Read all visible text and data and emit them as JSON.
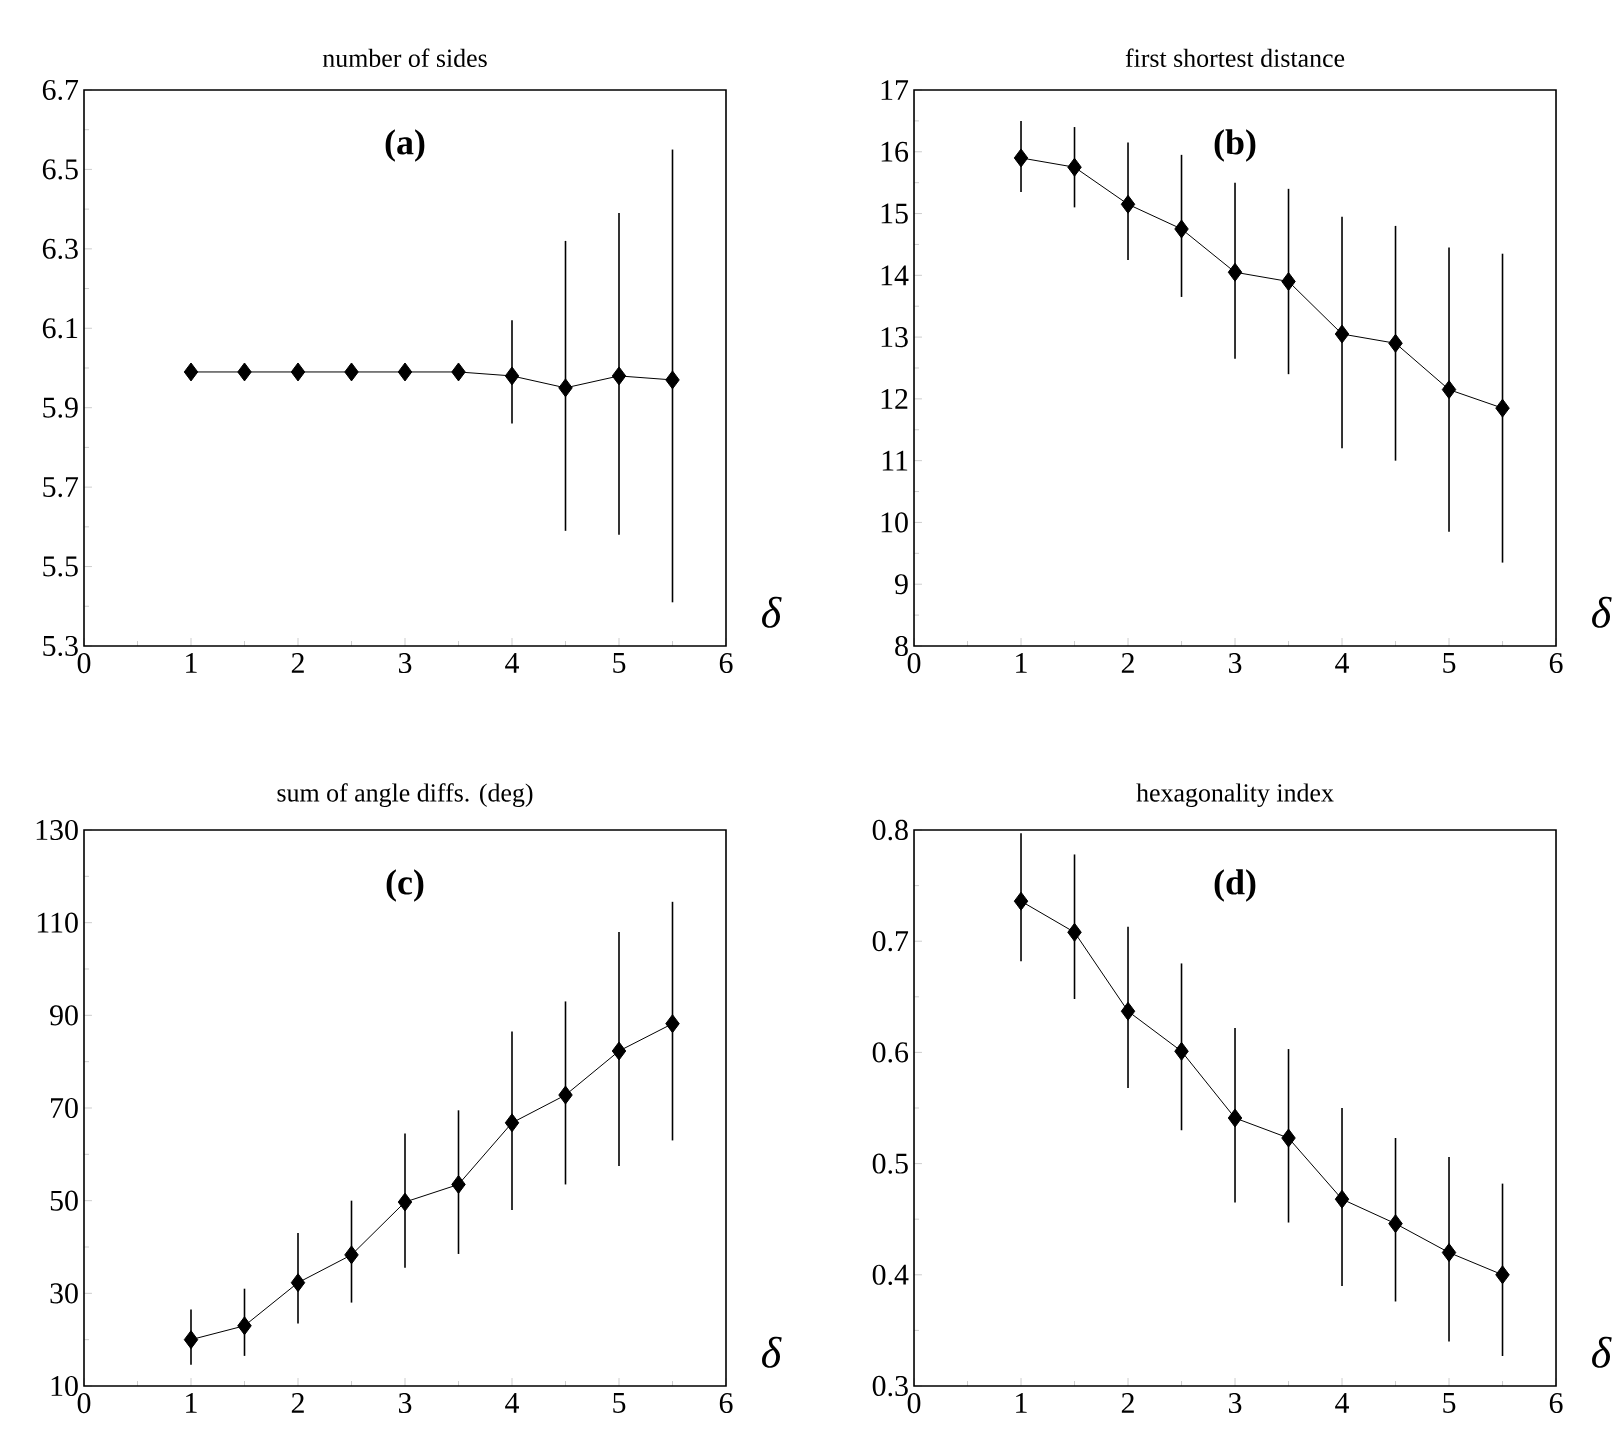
{
  "chart_data": [
    {
      "type": "line",
      "title": "number of sides",
      "xlabel": "δ",
      "annotations": [
        "(a)"
      ],
      "x": [
        1,
        1.5,
        2,
        2.5,
        3,
        3.5,
        4,
        4.5,
        5,
        5.5
      ],
      "marker": "diamond",
      "line_style": "solid",
      "series": [
        {
          "color": "#000000",
          "values": [
            5.99,
            5.99,
            5.99,
            5.99,
            5.99,
            5.99,
            5.98,
            5.95,
            5.98,
            5.97
          ],
          "errors": [
            null,
            null,
            null,
            null,
            null,
            null,
            [
              5.86,
              6.12
            ],
            [
              5.59,
              6.32
            ],
            [
              5.58,
              6.39
            ],
            [
              5.41,
              6.55
            ]
          ]
        }
      ],
      "xlim": [
        0,
        6
      ],
      "xticks": [
        0,
        1,
        2,
        3,
        4,
        5,
        6
      ],
      "ylim": [
        5.3,
        6.7
      ],
      "yticks": [
        5.3,
        5.5,
        5.7,
        5.9,
        6.1,
        6.3,
        6.5,
        6.7
      ]
    },
    {
      "type": "line",
      "title": "first shortest distance",
      "xlabel": "δ",
      "annotations": [
        "(b)"
      ],
      "x": [
        1,
        1.5,
        2,
        2.5,
        3,
        3.5,
        4,
        4.5,
        5,
        5.5
      ],
      "marker": "diamond",
      "line_style": "solid",
      "series": [
        {
          "color": "#000000",
          "values": [
            15.9,
            15.75,
            15.15,
            14.75,
            14.05,
            13.9,
            13.05,
            12.9,
            12.15,
            11.85
          ],
          "errors": [
            [
              15.35,
              16.5
            ],
            [
              15.1,
              16.4
            ],
            [
              14.25,
              16.15
            ],
            [
              13.65,
              15.95
            ],
            [
              12.65,
              15.5
            ],
            [
              12.4,
              15.4
            ],
            [
              11.2,
              14.95
            ],
            [
              11.0,
              14.8
            ],
            [
              9.85,
              14.45
            ],
            [
              9.35,
              14.35
            ]
          ]
        }
      ],
      "xlim": [
        0,
        6
      ],
      "xticks": [
        0,
        1,
        2,
        3,
        4,
        5,
        6
      ],
      "ylim": [
        8,
        17
      ],
      "yticks": [
        8,
        9,
        10,
        11,
        12,
        13,
        14,
        15,
        16,
        17
      ]
    },
    {
      "type": "line",
      "title": "sum of angle diffs. (deg)",
      "xlabel": "δ",
      "annotations": [
        "(c)"
      ],
      "x": [
        1,
        1.5,
        2,
        2.5,
        3,
        3.5,
        4,
        4.5,
        5,
        5.5
      ],
      "marker": "diamond",
      "line_style": "solid",
      "series": [
        {
          "color": "#000000",
          "values": [
            20,
            23,
            32.3,
            38.3,
            49.7,
            53.5,
            66.8,
            72.8,
            82.3,
            88.2
          ],
          "errors": [
            [
              14.6,
              26.5
            ],
            [
              16.5,
              31
            ],
            [
              23.5,
              43
            ],
            [
              28,
              50
            ],
            [
              35.5,
              64.5
            ],
            [
              38.5,
              69.5
            ],
            [
              48,
              86.5
            ],
            [
              53.5,
              93
            ],
            [
              57.5,
              108
            ],
            [
              63,
              114.5
            ]
          ]
        }
      ],
      "xlim": [
        0,
        6
      ],
      "xticks": [
        0,
        1,
        2,
        3,
        4,
        5,
        6
      ],
      "ylim": [
        10,
        130
      ],
      "yticks": [
        10,
        30,
        50,
        70,
        90,
        110,
        130
      ]
    },
    {
      "type": "line",
      "title": "hexagonality index",
      "xlabel": "δ",
      "annotations": [
        "(d)"
      ],
      "x": [
        1,
        1.5,
        2,
        2.5,
        3,
        3.5,
        4,
        4.5,
        5,
        5.5
      ],
      "marker": "diamond",
      "line_style": "solid",
      "series": [
        {
          "color": "#000000",
          "values": [
            0.736,
            0.708,
            0.637,
            0.601,
            0.541,
            0.523,
            0.468,
            0.446,
            0.42,
            0.4
          ],
          "errors": [
            [
              0.682,
              0.797
            ],
            [
              0.648,
              0.778
            ],
            [
              0.568,
              0.713
            ],
            [
              0.53,
              0.68
            ],
            [
              0.465,
              0.622
            ],
            [
              0.447,
              0.603
            ],
            [
              0.39,
              0.55
            ],
            [
              0.376,
              0.523
            ],
            [
              0.34,
              0.506
            ],
            [
              0.327,
              0.482
            ]
          ]
        }
      ],
      "xlim": [
        0,
        6
      ],
      "xticks": [
        0,
        1,
        2,
        3,
        4,
        5,
        6
      ],
      "ylim": [
        0.3,
        0.8
      ],
      "yticks": [
        0.3,
        0.4,
        0.5,
        0.6,
        0.7,
        0.8
      ]
    }
  ]
}
